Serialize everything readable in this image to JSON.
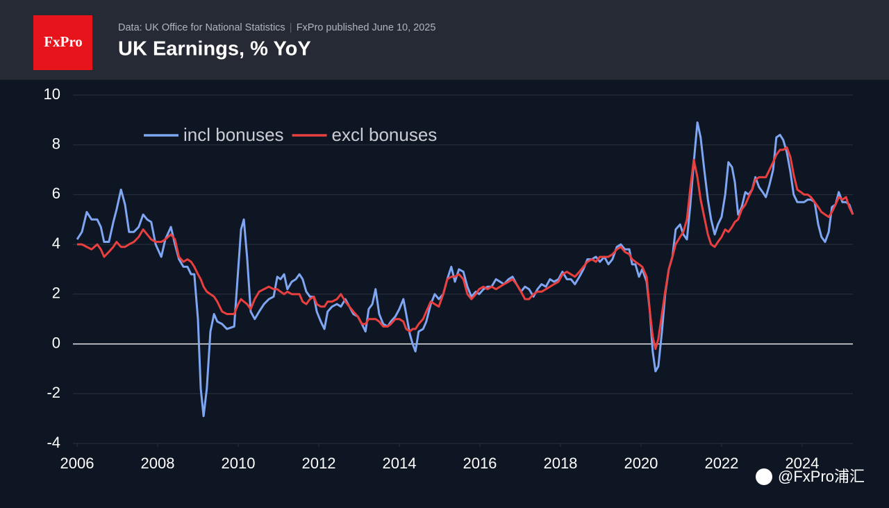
{
  "chart_data": {
    "type": "line",
    "title": "UK Earnings, % YoY",
    "source": "Data: UK Office for National Statistics",
    "published": "FxPro published June 10, 2025",
    "logo": "FxPro",
    "watermark": "@FxPro浦汇",
    "legend": "top-left",
    "grid": true,
    "xlim": [
      2006,
      2025.26
    ],
    "xticks": [
      2006,
      2008,
      2010,
      2012,
      2014,
      2016,
      2018,
      2020,
      2022,
      2024
    ],
    "ylim": [
      -4,
      10
    ],
    "yticks": [
      -4,
      -2,
      0,
      2,
      4,
      6,
      8,
      10
    ],
    "x": [
      2006.0,
      2006.12,
      2006.24,
      2006.36,
      2006.5,
      2006.59,
      2006.67,
      2006.79,
      2006.9,
      2006.98,
      2007.09,
      2007.19,
      2007.29,
      2007.41,
      2007.53,
      2007.64,
      2007.74,
      2007.84,
      2007.95,
      2008.09,
      2008.19,
      2008.33,
      2008.43,
      2008.53,
      2008.64,
      2008.74,
      2008.83,
      2008.91,
      2009.0,
      2009.07,
      2009.14,
      2009.22,
      2009.31,
      2009.4,
      2009.48,
      2009.6,
      2009.72,
      2009.9,
      2010.0,
      2010.07,
      2010.14,
      2010.22,
      2010.31,
      2010.41,
      2010.52,
      2010.64,
      2010.76,
      2010.88,
      2010.97,
      2011.05,
      2011.14,
      2011.22,
      2011.33,
      2011.43,
      2011.52,
      2011.6,
      2011.69,
      2011.78,
      2011.88,
      2011.95,
      2012.05,
      2012.14,
      2012.22,
      2012.33,
      2012.45,
      2012.55,
      2012.66,
      2012.76,
      2012.86,
      2012.97,
      2013.07,
      2013.16,
      2013.24,
      2013.33,
      2013.41,
      2013.5,
      2013.6,
      2013.71,
      2013.79,
      2013.9,
      2014.0,
      2014.1,
      2014.17,
      2014.26,
      2014.33,
      2014.4,
      2014.48,
      2014.59,
      2014.67,
      2014.78,
      2014.88,
      2014.98,
      2015.09,
      2015.19,
      2015.29,
      2015.38,
      2015.48,
      2015.59,
      2015.69,
      2015.79,
      2015.9,
      2015.98,
      2016.09,
      2016.19,
      2016.29,
      2016.4,
      2016.5,
      2016.6,
      2016.71,
      2016.81,
      2016.91,
      2017.02,
      2017.12,
      2017.22,
      2017.33,
      2017.43,
      2017.53,
      2017.64,
      2017.74,
      2017.84,
      2017.95,
      2018.05,
      2018.16,
      2018.26,
      2018.36,
      2018.47,
      2018.57,
      2018.67,
      2018.78,
      2018.88,
      2018.98,
      2019.09,
      2019.19,
      2019.29,
      2019.4,
      2019.5,
      2019.6,
      2019.71,
      2019.78,
      2019.86,
      2019.95,
      2020.03,
      2020.14,
      2020.22,
      2020.29,
      2020.36,
      2020.43,
      2020.52,
      2020.6,
      2020.69,
      2020.78,
      2020.86,
      2020.97,
      2021.05,
      2021.14,
      2021.22,
      2021.31,
      2021.4,
      2021.48,
      2021.57,
      2021.66,
      2021.74,
      2021.83,
      2021.91,
      2022.0,
      2022.09,
      2022.17,
      2022.26,
      2022.33,
      2022.41,
      2022.5,
      2022.59,
      2022.67,
      2022.76,
      2022.84,
      2022.93,
      2023.02,
      2023.1,
      2023.19,
      2023.28,
      2023.36,
      2023.45,
      2023.53,
      2023.62,
      2023.71,
      2023.79,
      2023.88,
      2023.97,
      2024.05,
      2024.14,
      2024.22,
      2024.31,
      2024.4,
      2024.48,
      2024.57,
      2024.66,
      2024.74,
      2024.83,
      2024.91,
      2025.0,
      2025.09,
      2025.17,
      2025.26
    ],
    "series": [
      {
        "name": "incl bonuses",
        "color": "#7ea6f2",
        "values": [
          4.2,
          4.5,
          5.3,
          5.0,
          5.0,
          4.7,
          4.1,
          4.1,
          4.9,
          5.4,
          6.2,
          5.6,
          4.5,
          4.5,
          4.7,
          5.2,
          5.0,
          4.9,
          4.0,
          3.5,
          4.2,
          4.7,
          4.0,
          3.4,
          3.1,
          3.1,
          2.8,
          2.8,
          1.0,
          -1.8,
          -2.9,
          -1.8,
          0.5,
          1.2,
          0.9,
          0.8,
          0.6,
          0.7,
          3.0,
          4.6,
          5.0,
          3.5,
          1.3,
          1.0,
          1.3,
          1.6,
          1.8,
          1.9,
          2.7,
          2.6,
          2.8,
          2.2,
          2.5,
          2.6,
          2.8,
          2.6,
          2.1,
          1.9,
          1.9,
          1.3,
          0.9,
          0.6,
          1.3,
          1.5,
          1.6,
          1.5,
          1.8,
          1.5,
          1.2,
          1.1,
          0.8,
          0.5,
          1.4,
          1.6,
          2.2,
          1.2,
          0.8,
          0.7,
          0.9,
          1.1,
          1.4,
          1.8,
          1.2,
          0.4,
          0.0,
          -0.3,
          0.5,
          0.6,
          0.9,
          1.6,
          2.0,
          1.8,
          2.0,
          2.6,
          3.1,
          2.5,
          3.0,
          2.9,
          2.3,
          1.9,
          2.1,
          2.0,
          2.2,
          2.3,
          2.3,
          2.6,
          2.5,
          2.4,
          2.6,
          2.7,
          2.4,
          2.1,
          2.3,
          2.2,
          1.9,
          2.2,
          2.4,
          2.3,
          2.6,
          2.5,
          2.6,
          2.9,
          2.6,
          2.6,
          2.4,
          2.7,
          3.0,
          3.4,
          3.4,
          3.5,
          3.3,
          3.5,
          3.2,
          3.4,
          3.9,
          4.0,
          3.8,
          3.8,
          3.2,
          3.2,
          2.7,
          3.0,
          2.5,
          1.3,
          -0.3,
          -1.1,
          -0.9,
          0.5,
          2.0,
          3.0,
          3.5,
          4.6,
          4.8,
          4.4,
          4.2,
          5.5,
          7.3,
          8.9,
          8.3,
          7.0,
          5.8,
          5.0,
          4.4,
          4.8,
          5.1,
          6.0,
          7.3,
          7.1,
          6.5,
          5.2,
          5.5,
          6.1,
          6.0,
          6.2,
          6.7,
          6.3,
          6.1,
          5.9,
          6.4,
          7.0,
          8.3,
          8.4,
          8.2,
          7.7,
          6.9,
          6.0,
          5.7,
          5.7,
          5.7,
          5.8,
          5.8,
          5.7,
          4.8,
          4.3,
          4.1,
          4.5,
          5.5,
          5.6,
          6.1,
          5.7,
          5.7,
          5.6,
          5.2
        ]
      },
      {
        "name": "excl bonuses",
        "color": "#e9403f",
        "values": [
          4.0,
          4.0,
          3.9,
          3.8,
          4.0,
          3.8,
          3.5,
          3.7,
          3.9,
          4.1,
          3.9,
          3.9,
          4.0,
          4.1,
          4.3,
          4.6,
          4.4,
          4.2,
          4.1,
          4.1,
          4.2,
          4.4,
          4.2,
          3.5,
          3.3,
          3.4,
          3.3,
          3.1,
          2.8,
          2.6,
          2.3,
          2.1,
          2.0,
          1.9,
          1.7,
          1.3,
          1.2,
          1.2,
          1.6,
          1.8,
          1.7,
          1.6,
          1.4,
          1.8,
          2.1,
          2.2,
          2.3,
          2.2,
          2.2,
          2.1,
          2.0,
          2.1,
          2.0,
          2.0,
          2.0,
          1.7,
          1.6,
          1.8,
          1.9,
          1.6,
          1.5,
          1.5,
          1.7,
          1.7,
          1.8,
          2.0,
          1.7,
          1.5,
          1.3,
          1.1,
          0.8,
          0.8,
          1.0,
          1.0,
          1.0,
          0.9,
          0.7,
          0.7,
          0.8,
          1.0,
          1.0,
          0.9,
          0.6,
          0.5,
          0.6,
          0.6,
          0.8,
          1.0,
          1.3,
          1.7,
          1.6,
          1.5,
          2.0,
          2.6,
          2.7,
          2.7,
          2.8,
          2.6,
          2.0,
          1.8,
          2.0,
          2.2,
          2.3,
          2.2,
          2.3,
          2.2,
          2.3,
          2.4,
          2.5,
          2.6,
          2.4,
          2.1,
          1.8,
          1.8,
          2.0,
          2.1,
          2.1,
          2.2,
          2.3,
          2.4,
          2.5,
          2.8,
          2.9,
          2.8,
          2.7,
          2.9,
          3.1,
          3.3,
          3.4,
          3.3,
          3.5,
          3.5,
          3.5,
          3.6,
          3.8,
          3.9,
          3.7,
          3.6,
          3.4,
          3.3,
          3.2,
          3.1,
          2.7,
          1.3,
          0.3,
          -0.2,
          0.2,
          1.2,
          2.1,
          3.0,
          3.5,
          4.0,
          4.3,
          4.5,
          5.0,
          6.2,
          7.4,
          6.7,
          5.8,
          5.1,
          4.4,
          4.0,
          3.9,
          4.1,
          4.3,
          4.6,
          4.5,
          4.7,
          4.9,
          5.0,
          5.4,
          5.6,
          5.9,
          6.2,
          6.6,
          6.7,
          6.7,
          6.7,
          7.0,
          7.3,
          7.6,
          7.8,
          7.8,
          7.9,
          7.5,
          6.8,
          6.2,
          6.1,
          6.0,
          6.0,
          5.9,
          5.7,
          5.5,
          5.3,
          5.2,
          5.1,
          5.3,
          5.6,
          5.9,
          5.8,
          5.9,
          5.5,
          5.2
        ]
      }
    ]
  }
}
